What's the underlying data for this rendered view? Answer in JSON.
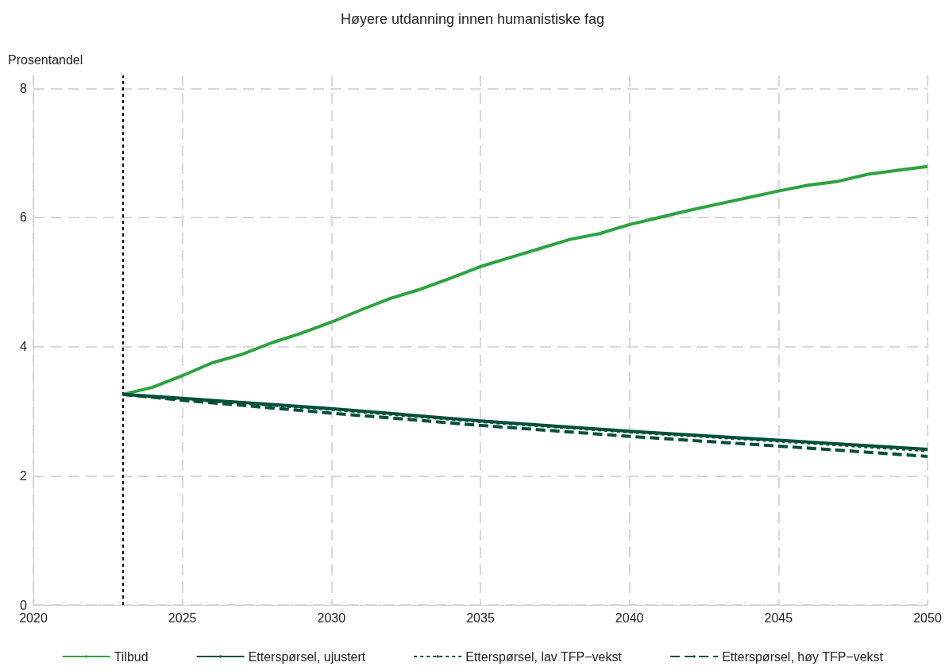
{
  "chart_data": {
    "type": "line",
    "title": "Høyere utdanning innen humanistiske fag",
    "ylabel": "Prosentandel",
    "xlim": [
      2020,
      2050
    ],
    "xticks": [
      2020,
      2025,
      2030,
      2035,
      2040,
      2045,
      2050
    ],
    "ylim": [
      0,
      8.2
    ],
    "yticks": [
      0,
      2,
      4,
      6,
      8
    ],
    "grid": true,
    "legend": "bottom",
    "marker": "none",
    "ref_lines": [
      {
        "axis": "x",
        "value": 2023,
        "color": "#000000",
        "line_style": "dotted"
      }
    ],
    "series": [
      {
        "name": "Tilbud",
        "color": "#2ca33f",
        "line_style": "solid",
        "x": [
          2023,
          2024,
          2025,
          2026,
          2027,
          2028,
          2029,
          2030,
          2031,
          2032,
          2033,
          2034,
          2035,
          2036,
          2037,
          2038,
          2039,
          2040,
          2041,
          2042,
          2043,
          2044,
          2045,
          2046,
          2047,
          2048,
          2049,
          2050
        ],
        "values": [
          3.26,
          3.37,
          3.55,
          3.75,
          3.88,
          4.06,
          4.21,
          4.38,
          4.57,
          4.75,
          4.89,
          5.06,
          5.24,
          5.38,
          5.52,
          5.66,
          5.75,
          5.89,
          6.0,
          6.11,
          6.21,
          6.31,
          6.41,
          6.5,
          6.56,
          6.67,
          6.73,
          6.79
        ]
      },
      {
        "name": "Etterspørsel, ujustert",
        "color": "#00503a",
        "line_style": "solid",
        "x": [
          2023,
          2025,
          2030,
          2035,
          2040,
          2045,
          2050
        ],
        "values": [
          3.26,
          3.2,
          3.04,
          2.85,
          2.69,
          2.55,
          2.41
        ]
      },
      {
        "name": "Etterspørsel, lav TFP−vekst",
        "color": "#00503a",
        "line_style": "dotted",
        "x": [
          2023,
          2025,
          2030,
          2035,
          2040,
          2045,
          2050
        ],
        "values": [
          3.26,
          3.19,
          3.03,
          2.84,
          2.68,
          2.54,
          2.39
        ]
      },
      {
        "name": "Etterspørsel, høy TFP−vekst",
        "color": "#00503a",
        "line_style": "dashed",
        "x": [
          2023,
          2025,
          2030,
          2035,
          2040,
          2045,
          2050
        ],
        "values": [
          3.26,
          3.17,
          2.97,
          2.78,
          2.61,
          2.46,
          2.3
        ]
      }
    ]
  }
}
